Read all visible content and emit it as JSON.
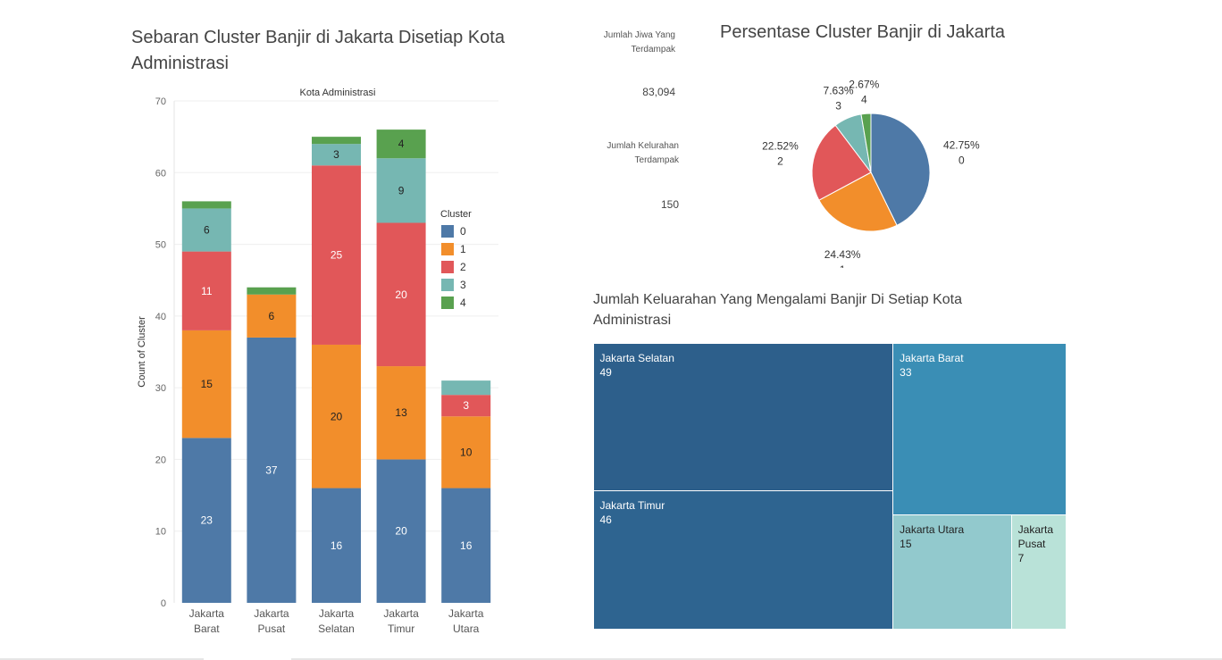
{
  "titles": {
    "bar": "Sebaran Cluster Banjir di Jakarta Disetiap Kota Administrasi",
    "pie": "Persentase Cluster Banjir di Jakarta",
    "treemap": "Jumlah Keluarahan Yang Mengalami Banjir  Di Setiap Kota Administrasi"
  },
  "kpi": {
    "jiwa_label": "Jumlah Jiwa Yang Terdampak",
    "jiwa_value": "83,094",
    "kel_label": "Jumlah Kelurahan Terdampak",
    "kel_value": "150"
  },
  "colors": {
    "cluster": [
      "#4e79a7",
      "#f28e2b",
      "#e15759",
      "#76b7b2",
      "#59a14f"
    ],
    "treemap": [
      "#2d5f8b",
      "#2e6490",
      "#3a8eb5",
      "#92c9cd",
      "#b9e2d8"
    ]
  },
  "chart_data": [
    {
      "type": "bar",
      "stacked": true,
      "header": "Kota Administrasi",
      "ylabel": "Count of Cluster",
      "ylim": [
        0,
        70
      ],
      "yticks": [
        0,
        10,
        20,
        30,
        40,
        50,
        60,
        70
      ],
      "categories": [
        "Jakarta Barat",
        "Jakarta Pusat",
        "Jakarta Selatan",
        "Jakarta Timur",
        "Jakarta Utara"
      ],
      "legend_title": "Cluster",
      "legend_position": "right",
      "series": [
        {
          "name": "0",
          "values": [
            23,
            37,
            16,
            20,
            16
          ]
        },
        {
          "name": "1",
          "values": [
            15,
            6,
            20,
            13,
            10
          ]
        },
        {
          "name": "2",
          "values": [
            11,
            0,
            25,
            20,
            3
          ]
        },
        {
          "name": "3",
          "values": [
            6,
            0,
            3,
            9,
            2
          ]
        },
        {
          "name": "4",
          "values": [
            1,
            1,
            1,
            4,
            0
          ]
        }
      ],
      "data_labels": [
        [
          "23",
          "15",
          "11",
          "6",
          ""
        ],
        [
          "37",
          "6",
          "",
          "",
          ""
        ],
        [
          "16",
          "20",
          "25",
          "3",
          ""
        ],
        [
          "20",
          "13",
          "20",
          "9",
          "4"
        ],
        [
          "16",
          "10",
          "3",
          "",
          ""
        ]
      ]
    },
    {
      "type": "pie",
      "slices": [
        {
          "cluster": "0",
          "percent": 42.75,
          "label": "42.75%"
        },
        {
          "cluster": "1",
          "percent": 24.43,
          "label": "24.43%"
        },
        {
          "cluster": "2",
          "percent": 22.52,
          "label": "22.52%"
        },
        {
          "cluster": "3",
          "percent": 7.63,
          "label": "7.63%"
        },
        {
          "cluster": "4",
          "percent": 2.67,
          "label": "2.67%"
        }
      ]
    },
    {
      "type": "treemap",
      "items": [
        {
          "name": "Jakarta Selatan",
          "value": 49
        },
        {
          "name": "Jakarta Timur",
          "value": 46
        },
        {
          "name": "Jakarta Barat",
          "value": 33
        },
        {
          "name": "Jakarta Utara",
          "value": 15
        },
        {
          "name": "Jakarta Pusat",
          "value": 7
        }
      ]
    }
  ]
}
